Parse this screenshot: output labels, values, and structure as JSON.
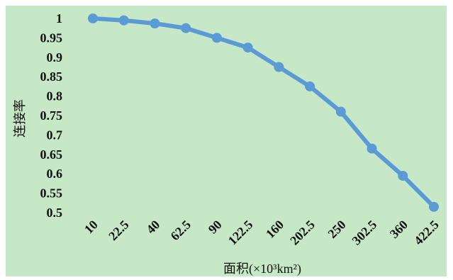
{
  "chart_data": {
    "type": "line",
    "title": "",
    "xlabel": "面积(×10³km²)",
    "ylabel": "连接率",
    "categories": [
      "10",
      "22.5",
      "40",
      "62.5",
      "90",
      "122.5",
      "160",
      "202.5",
      "250",
      "302.5",
      "360",
      "422.5"
    ],
    "series": [
      {
        "values": [
          1.0,
          0.995,
          0.987,
          0.975,
          0.95,
          0.925,
          0.875,
          0.825,
          0.76,
          0.665,
          0.595,
          0.515
        ]
      }
    ],
    "yticks": [
      "0.5",
      "0.55",
      "0.6",
      "0.65",
      "0.7",
      "0.75",
      "0.8",
      "0.85",
      "0.9",
      "0.95",
      "1"
    ],
    "ylim": [
      0.5,
      1.0
    ],
    "grid": false,
    "legend": "none",
    "colors": {
      "background": "#c6e8c6",
      "line": "#5b9bd5",
      "marker": "#5b9bd5"
    }
  }
}
